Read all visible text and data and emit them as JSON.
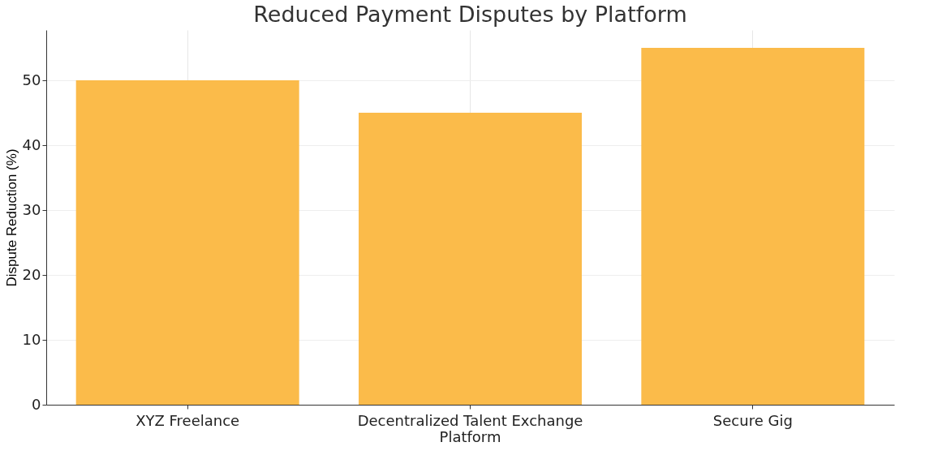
{
  "chart_data": {
    "type": "bar",
    "title": "Reduced Payment Disputes by Platform",
    "ylabel": "Dispute Reduction (%)",
    "categories": [
      "XYZ Freelance",
      "Decentralized Talent Exchange Platform",
      "Secure Gig"
    ],
    "values": [
      50,
      45,
      55
    ],
    "color": "#fbbb4a",
    "ylim": [
      0,
      57.75
    ],
    "yticks": [
      0,
      10,
      20,
      30,
      40,
      50
    ],
    "grid": true
  }
}
